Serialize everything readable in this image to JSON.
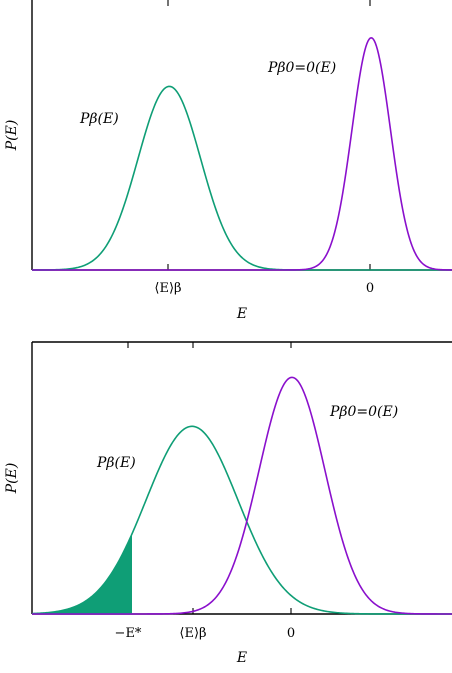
{
  "colors": {
    "green": "#0f9e76",
    "purple": "#8a10cc",
    "axis": "#000000"
  },
  "chart_data": [
    {
      "type": "line",
      "title": "",
      "xlabel": "E",
      "ylabel": "P(E)",
      "x_tick_labels": [
        "⟨E⟩β",
        "0"
      ],
      "series": [
        {
          "name": "Pβ(E)",
          "color": "#0f9e76",
          "mean": -1.0,
          "sigma": 0.155,
          "peak": 0.68
        },
        {
          "name": "Pβ0=0(E)",
          "color": "#8a10cc",
          "mean": 0.0,
          "sigma": 0.095,
          "peak": 0.86
        }
      ],
      "xlim": [
        -1.68,
        0.4
      ],
      "ylim": [
        0,
        1
      ],
      "labels": {
        "p_beta": "Pβ(E)",
        "p_beta0": "Pβ0=0(E)",
        "x_mean": "⟨E⟩β",
        "x_zero": "0"
      }
    },
    {
      "type": "line",
      "title": "",
      "xlabel": "E",
      "ylabel": "P(E)",
      "x_tick_labels": [
        "−E*",
        "⟨E⟩β",
        "0"
      ],
      "series": [
        {
          "name": "Pβ(E)",
          "color": "#0f9e76",
          "mean": -0.5,
          "sigma": 0.23,
          "peak": 0.69,
          "shaded_below": -0.8
        },
        {
          "name": "Pβ0=0(E)",
          "color": "#8a10cc",
          "mean": 0.0,
          "sigma": 0.165,
          "peak": 0.87
        }
      ],
      "xlim": [
        -1.3,
        0.8
      ],
      "ylim": [
        0,
        1
      ],
      "labels": {
        "p_beta": "Pβ(E)",
        "p_beta0": "Pβ0=0(E)",
        "x_estar": "−E*",
        "x_mean": "⟨E⟩β",
        "x_zero": "0"
      }
    }
  ]
}
